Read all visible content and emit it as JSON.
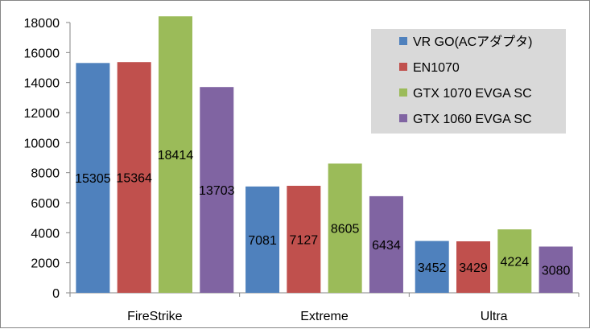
{
  "chart_data": {
    "type": "bar",
    "categories": [
      "FireStrike",
      "Extreme",
      "Ultra"
    ],
    "series": [
      {
        "name": "VR GO(ACアダプタ)",
        "color": "#4f81bd",
        "values": [
          15305,
          7081,
          3452
        ]
      },
      {
        "name": "EN1070",
        "color": "#c0504d",
        "values": [
          15364,
          7127,
          3429
        ]
      },
      {
        "name": "GTX 1070 EVGA SC",
        "color": "#9bbb59",
        "values": [
          18414,
          8605,
          4224
        ]
      },
      {
        "name": "GTX 1060 EVGA SC",
        "color": "#8064a2",
        "values": [
          13703,
          6434,
          3080
        ]
      }
    ],
    "ylim": [
      0,
      18000
    ],
    "yticks": [
      0,
      2000,
      4000,
      6000,
      8000,
      10000,
      12000,
      14000,
      16000,
      18000
    ],
    "grid": false,
    "legend_position": "top-right",
    "data_labels": true,
    "title": "",
    "xlabel": "",
    "ylabel": ""
  }
}
